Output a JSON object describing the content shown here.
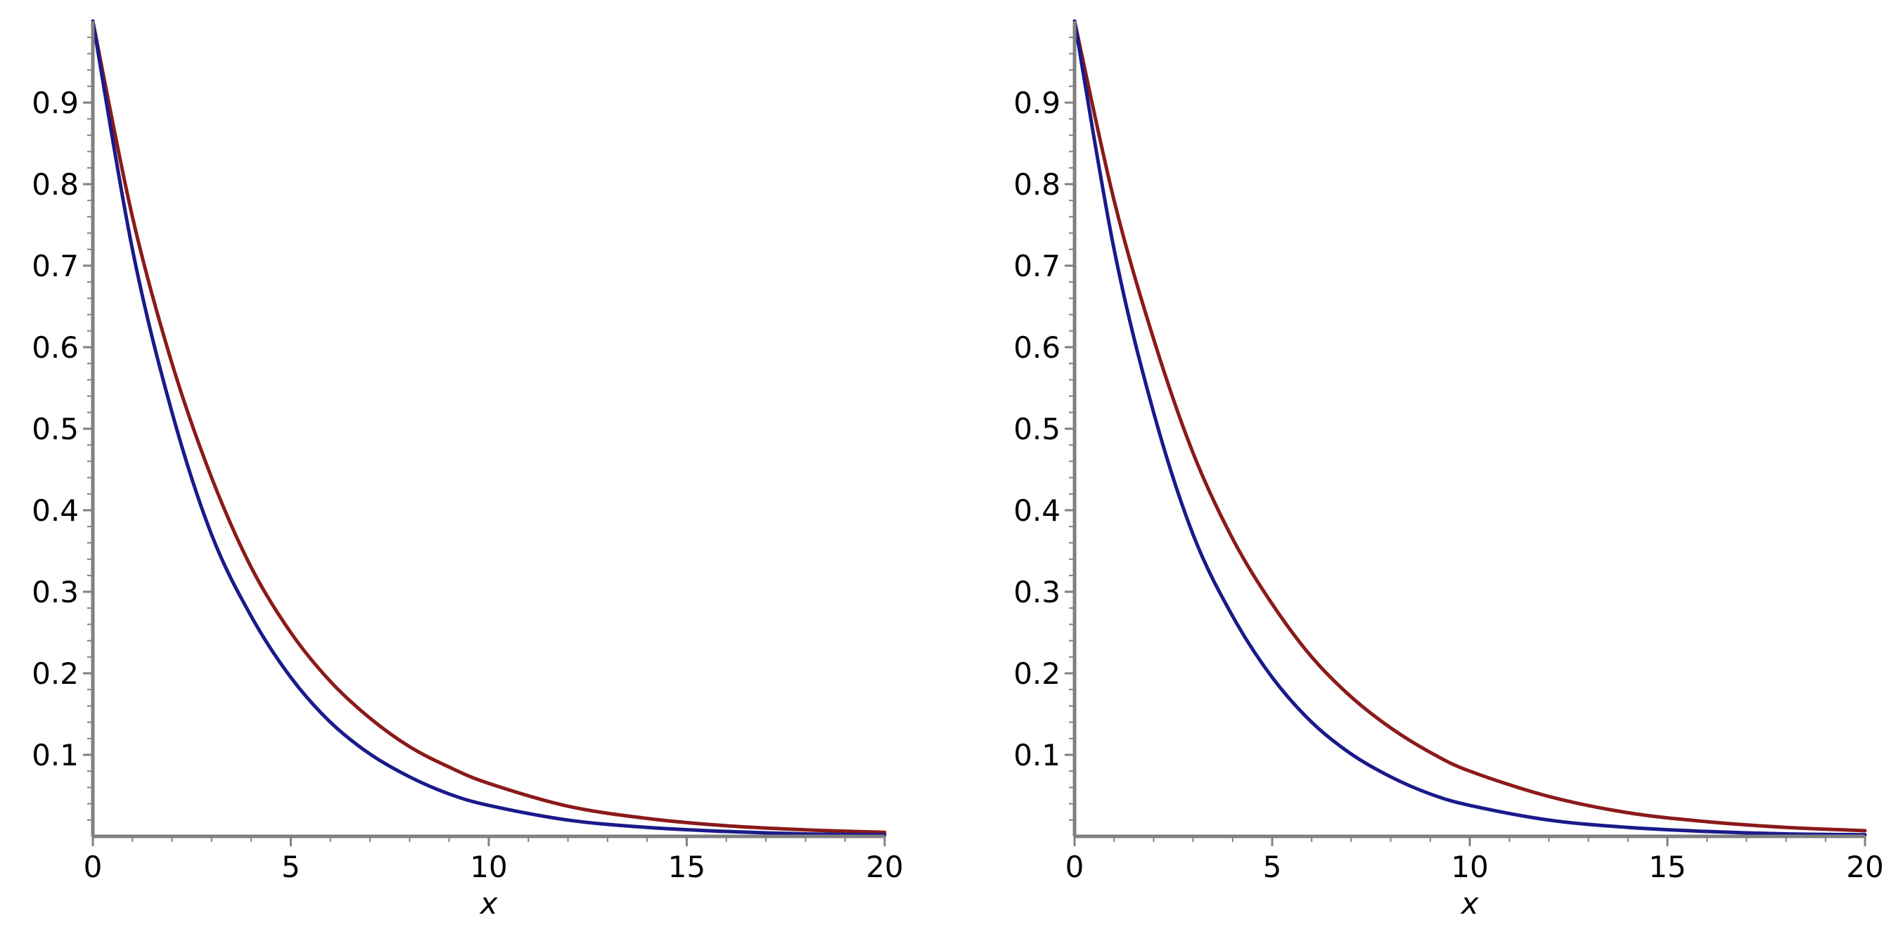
{
  "chart_data": [
    {
      "type": "line",
      "title": "",
      "xlabel": "x",
      "ylabel": "",
      "xlim": [
        0,
        20
      ],
      "ylim": [
        0,
        1
      ],
      "x_ticks": [
        0,
        5,
        10,
        15,
        20
      ],
      "x_tick_labels": [
        "0",
        "5",
        "10",
        "15",
        "20"
      ],
      "y_ticks": [
        0.1,
        0.2,
        0.3,
        0.4,
        0.5,
        0.6,
        0.7,
        0.8,
        0.9
      ],
      "y_tick_labels": [
        "0.1",
        "0.2",
        "0.3",
        "0.4",
        "0.5",
        "0.6",
        "0.7",
        "0.8",
        "0.9"
      ],
      "grid": false,
      "x": [
        0,
        1,
        2,
        3,
        4,
        5,
        6,
        7,
        8,
        9,
        10,
        12,
        14,
        16,
        18,
        20
      ],
      "series": [
        {
          "color": "#8B1A1A",
          "values": [
            1.0,
            0.76,
            0.58,
            0.44,
            0.33,
            0.25,
            0.19,
            0.145,
            0.11,
            0.085,
            0.065,
            0.037,
            0.022,
            0.013,
            0.008,
            0.005
          ]
        },
        {
          "color": "#1A1A8B",
          "values": [
            1.0,
            0.72,
            0.52,
            0.37,
            0.27,
            0.195,
            0.14,
            0.101,
            0.073,
            0.052,
            0.038,
            0.02,
            0.011,
            0.006,
            0.003,
            0.002
          ]
        }
      ]
    },
    {
      "type": "line",
      "title": "",
      "xlabel": "x",
      "ylabel": "",
      "xlim": [
        0,
        20
      ],
      "ylim": [
        0,
        1
      ],
      "x_ticks": [
        0,
        5,
        10,
        15,
        20
      ],
      "x_tick_labels": [
        "0",
        "5",
        "10",
        "15",
        "20"
      ],
      "y_ticks": [
        0.1,
        0.2,
        0.3,
        0.4,
        0.5,
        0.6,
        0.7,
        0.8,
        0.9
      ],
      "y_tick_labels": [
        "0.1",
        "0.2",
        "0.3",
        "0.4",
        "0.5",
        "0.6",
        "0.7",
        "0.8",
        "0.9"
      ],
      "grid": false,
      "x": [
        0,
        1,
        2,
        3,
        4,
        5,
        6,
        7,
        8,
        9,
        10,
        12,
        14,
        16,
        18,
        20
      ],
      "series": [
        {
          "color": "#8B1A1A",
          "values": [
            1.0,
            0.78,
            0.61,
            0.47,
            0.365,
            0.285,
            0.22,
            0.171,
            0.133,
            0.103,
            0.08,
            0.049,
            0.029,
            0.018,
            0.011,
            0.007
          ]
        },
        {
          "color": "#1A1A8B",
          "values": [
            1.0,
            0.72,
            0.52,
            0.37,
            0.27,
            0.195,
            0.14,
            0.101,
            0.073,
            0.052,
            0.038,
            0.02,
            0.011,
            0.006,
            0.003,
            0.002
          ]
        }
      ]
    }
  ]
}
